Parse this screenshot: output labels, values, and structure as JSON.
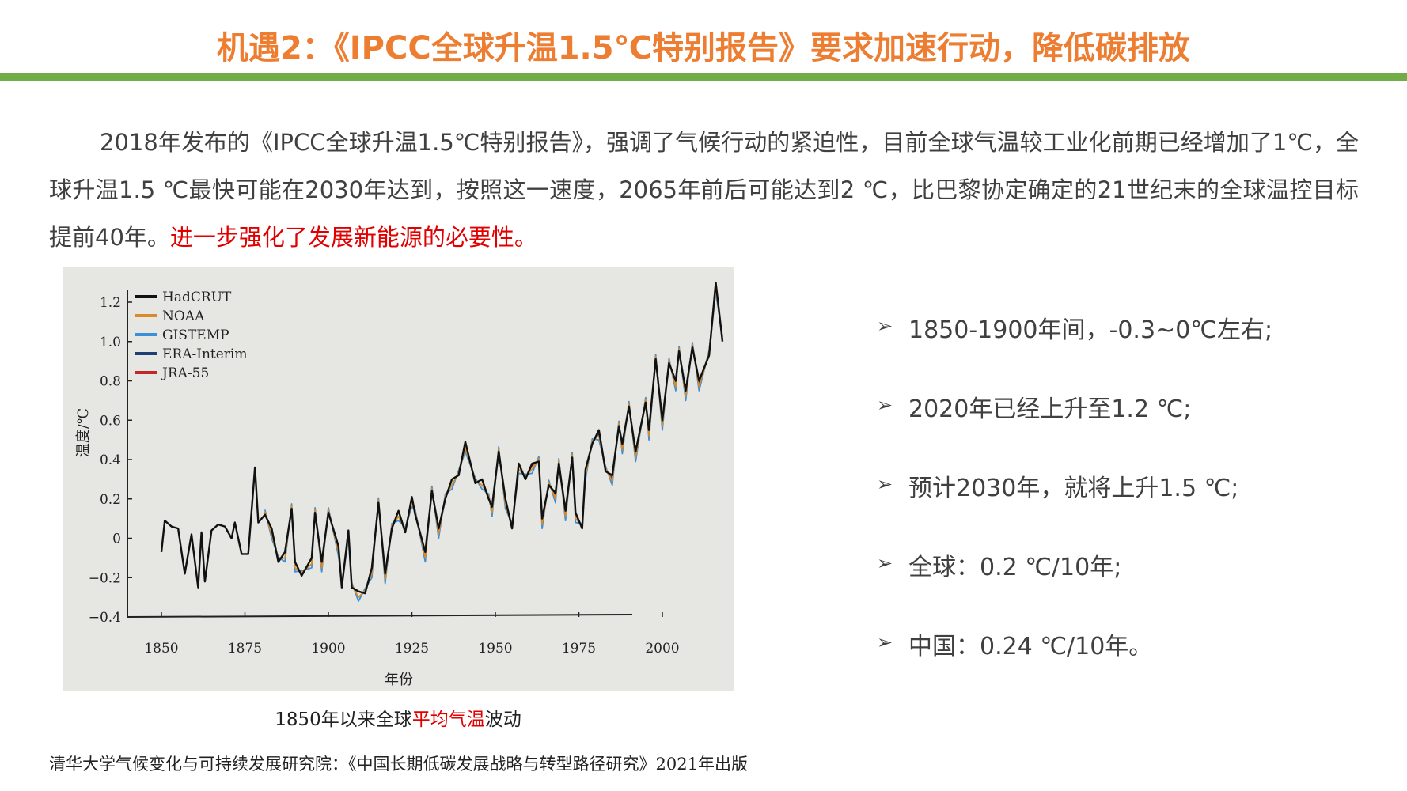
{
  "title": "机遇2：《IPCC全球升温1.5℃特别报告》要求加速行动，降低碳排放",
  "paragraph": {
    "text": "2018年发布的《IPCC全球升温1.5℃特别报告》，强调了气候行动的紧迫性，目前全球气温较工业化前期已经增加了1℃，全球升温1.5 ℃最快可能在2030年达到，按照这一速度，2065年前后可能达到2 ℃，比巴黎协定确定的21世纪末的全球温控目标提前40年。",
    "highlight": "进一步强化了发展新能源的必要性。"
  },
  "caption": {
    "pre": "1850年以来全球",
    "highlight": "平均气温",
    "post": "波动"
  },
  "bullets": [
    "1850-1900年间，-0.3~0℃左右;",
    "2020年已经上升至1.2 ℃;",
    "预计2030年，就将上升1.5 ℃;",
    "全球：0.2 ℃/10年;",
    "中国：0.24 ℃/10年。"
  ],
  "footer": "清华大学气候变化与可持续发展研究院：《中国长期低碳发展战略与转型路径研究》2021年出版",
  "colors": {
    "title": "#ED7D31",
    "bar": "#70AD47",
    "highlight": "#E00000",
    "rule": "#8FAADC"
  },
  "chart_data": {
    "type": "line",
    "xlabel": "年份",
    "ylabel": "温度/℃",
    "xlim": [
      1845,
      2020
    ],
    "ylim": [
      -0.4,
      1.3
    ],
    "xticks": [
      "1850",
      "1875",
      "1900",
      "1925",
      "1950",
      "1975",
      "2000"
    ],
    "yticks": [
      "1.2",
      "1.0",
      "0.8",
      "0.6",
      "0.4",
      "0.2",
      "0",
      "−0.2",
      "−0.4"
    ],
    "legend_position": "top-left",
    "series": [
      {
        "name": "HadCRUT",
        "color": "#111111",
        "x": [
          1850,
          1851,
          1853,
          1855,
          1857,
          1859,
          1861,
          1862,
          1863,
          1865,
          1867,
          1869,
          1871,
          1872,
          1874,
          1876,
          1878,
          1879,
          1881,
          1883,
          1885,
          1887,
          1889,
          1890,
          1892,
          1895,
          1896,
          1898,
          1900,
          1903,
          1904,
          1906,
          1907,
          1909,
          1911,
          1913,
          1915,
          1917,
          1919,
          1921,
          1923,
          1925,
          1926,
          1929,
          1931,
          1933,
          1935,
          1937,
          1939,
          1941,
          1944,
          1946,
          1948,
          1949,
          1951,
          1953,
          1955,
          1957,
          1959,
          1961,
          1963,
          1964,
          1966,
          1968,
          1969,
          1971,
          1973,
          1974,
          1976,
          1977,
          1979,
          1981,
          1983,
          1985,
          1987,
          1988,
          1990,
          1992,
          1995,
          1996,
          1998,
          2000,
          2002,
          2004,
          2005,
          2007,
          2009,
          2011,
          2014,
          2016,
          2018
        ],
        "y": [
          -0.07,
          0.09,
          0.06,
          0.05,
          -0.18,
          0.02,
          -0.25,
          0.03,
          -0.22,
          0.04,
          0.07,
          0.06,
          0.0,
          0.08,
          -0.08,
          -0.08,
          0.36,
          0.08,
          0.12,
          0.05,
          -0.12,
          -0.07,
          0.15,
          -0.12,
          -0.19,
          -0.1,
          0.13,
          -0.12,
          0.13,
          -0.04,
          -0.25,
          0.04,
          -0.25,
          -0.27,
          -0.28,
          -0.15,
          0.18,
          -0.18,
          0.05,
          0.14,
          0.03,
          0.21,
          0.12,
          -0.07,
          0.24,
          0.05,
          0.2,
          0.3,
          0.32,
          0.49,
          0.28,
          0.3,
          0.2,
          0.16,
          0.44,
          0.2,
          0.05,
          0.38,
          0.3,
          0.38,
          0.39,
          0.1,
          0.27,
          0.23,
          0.38,
          0.14,
          0.41,
          0.13,
          0.05,
          0.35,
          0.48,
          0.55,
          0.34,
          0.32,
          0.57,
          0.48,
          0.67,
          0.44,
          0.69,
          0.55,
          0.91,
          0.6,
          0.89,
          0.8,
          0.95,
          0.75,
          0.97,
          0.8,
          0.93,
          1.3,
          1.0
        ]
      },
      {
        "name": "NOAA",
        "color": "#D98B2B"
      },
      {
        "name": "GISTEMP",
        "color": "#3A8FD6"
      },
      {
        "name": "ERA-Interim",
        "color": "#1F3F73"
      },
      {
        "name": "JRA-55",
        "color": "#C0282B"
      }
    ]
  }
}
